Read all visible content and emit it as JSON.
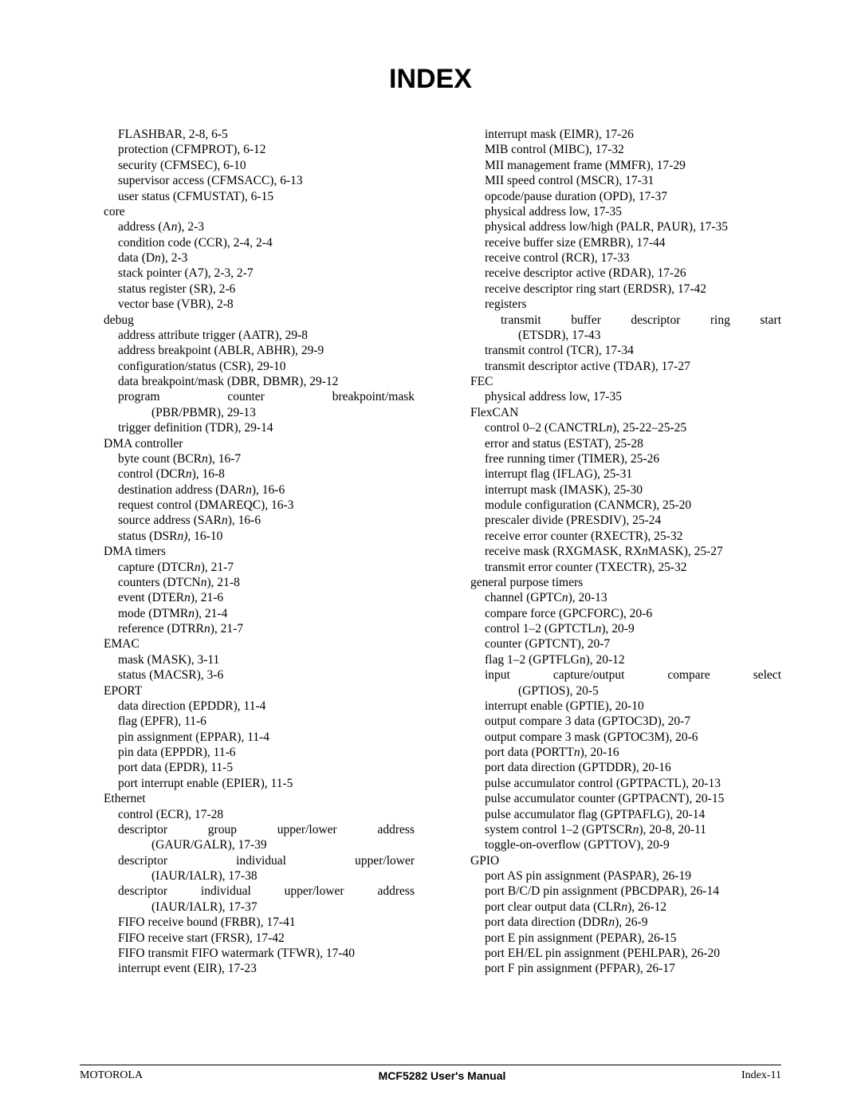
{
  "title": "INDEX",
  "footer": {
    "left": "MOTOROLA",
    "center": "MCF5282 User's Manual",
    "right": "Index-11"
  },
  "col1": [
    {
      "lvl": 1,
      "html": "FLASHBAR, 2-8, 6-5"
    },
    {
      "lvl": 1,
      "html": "protection (CFMPROT), 6-12"
    },
    {
      "lvl": 1,
      "html": "security (CFMSEC), 6-10"
    },
    {
      "lvl": 1,
      "html": "supervisor access (CFMSACC), 6-13"
    },
    {
      "lvl": 1,
      "html": "user status (CFMUSTAT), 6-15"
    },
    {
      "lvl": 0,
      "html": "core"
    },
    {
      "lvl": 1,
      "html": "address (A<i>n</i>), 2-3"
    },
    {
      "lvl": 1,
      "html": "condition code (CCR), 2-4, 2-4"
    },
    {
      "lvl": 1,
      "html": "data (D<i>n</i>), 2-3"
    },
    {
      "lvl": 1,
      "html": "stack pointer (A7), 2-3, 2-7"
    },
    {
      "lvl": 1,
      "html": "status register (SR), 2-6"
    },
    {
      "lvl": 1,
      "html": "vector base (VBR), 2-8"
    },
    {
      "lvl": 0,
      "html": "debug"
    },
    {
      "lvl": 1,
      "html": "address attribute trigger (AATR), 29-8"
    },
    {
      "lvl": 1,
      "html": "address breakpoint (ABLR, ABHR), 29-9"
    },
    {
      "lvl": 1,
      "html": "configuration/status (CSR), 29-10"
    },
    {
      "lvl": 1,
      "html": "data breakpoint/mask (DBR, DBMR), 29-12"
    },
    {
      "lvl": 1,
      "just": true,
      "html": "program counter breakpoint/mask"
    },
    {
      "lvl": 3,
      "html": "(PBR/PBMR), 29-13"
    },
    {
      "lvl": 1,
      "html": "trigger definition (TDR), 29-14"
    },
    {
      "lvl": 0,
      "html": "DMA controller"
    },
    {
      "lvl": 1,
      "html": "byte count (BCR<i>n</i>), 16-7"
    },
    {
      "lvl": 1,
      "html": "control (DCR<i>n</i>), 16-8"
    },
    {
      "lvl": 1,
      "html": "destination address (DAR<i>n</i>), 16-6"
    },
    {
      "lvl": 1,
      "html": "request control (DMAREQC), 16-3"
    },
    {
      "lvl": 1,
      "html": "source address (SAR<i>n</i>), 16-6"
    },
    {
      "lvl": 1,
      "html": "status (DSR<i>n)</i>, 16-10"
    },
    {
      "lvl": 0,
      "html": "DMA timers"
    },
    {
      "lvl": 1,
      "html": "capture (DTCR<i>n</i>), 21-7"
    },
    {
      "lvl": 1,
      "html": "counters (DTCN<i>n</i>), 21-8"
    },
    {
      "lvl": 1,
      "html": "event (DTER<i>n</i>), 21-6"
    },
    {
      "lvl": 1,
      "html": "mode (DTMR<i>n</i>), 21-4"
    },
    {
      "lvl": 1,
      "html": "reference (DTRR<i>n</i>), 21-7"
    },
    {
      "lvl": 0,
      "html": "EMAC"
    },
    {
      "lvl": 1,
      "html": "mask (MASK), 3-11"
    },
    {
      "lvl": 1,
      "html": "status (MACSR), 3-6"
    },
    {
      "lvl": 0,
      "html": "EPORT"
    },
    {
      "lvl": 1,
      "html": "data direction (EPDDR), 11-4"
    },
    {
      "lvl": 1,
      "html": "flag (EPFR), 11-6"
    },
    {
      "lvl": 1,
      "html": "pin assignment (EPPAR), 11-4"
    },
    {
      "lvl": 1,
      "html": "pin data (EPPDR), 11-6"
    },
    {
      "lvl": 1,
      "html": "port data (EPDR), 11-5"
    },
    {
      "lvl": 1,
      "html": "port interrupt enable (EPIER), 11-5"
    },
    {
      "lvl": 0,
      "html": "Ethernet"
    },
    {
      "lvl": 1,
      "html": "control (ECR), 17-28"
    },
    {
      "lvl": 1,
      "just": true,
      "html": "descriptor group upper/lower address"
    },
    {
      "lvl": 3,
      "html": "(GAUR/GALR), 17-39"
    },
    {
      "lvl": 1,
      "just": true,
      "html": "descriptor individual upper/lower"
    },
    {
      "lvl": 3,
      "html": "(IAUR/IALR), 17-38"
    },
    {
      "lvl": 1,
      "just": true,
      "html": "descriptor individual upper/lower address"
    },
    {
      "lvl": 3,
      "html": "(IAUR/IALR), 17-37"
    },
    {
      "lvl": 1,
      "html": "FIFO receive bound (FRBR), 17-41"
    },
    {
      "lvl": 1,
      "html": "FIFO receive start (FRSR), 17-42"
    },
    {
      "lvl": 1,
      "html": "FIFO transmit FIFO watermark (TFWR), 17-40"
    },
    {
      "lvl": 1,
      "html": "interrupt event (EIR), 17-23"
    }
  ],
  "col2": [
    {
      "lvl": 1,
      "html": "interrupt mask (EIMR), 17-26"
    },
    {
      "lvl": 1,
      "html": "MIB control (MIBC), 17-32"
    },
    {
      "lvl": 1,
      "html": "MII management frame (MMFR), 17-29"
    },
    {
      "lvl": 1,
      "html": "MII speed control (MSCR), 17-31"
    },
    {
      "lvl": 1,
      "html": "opcode/pause duration (OPD), 17-37"
    },
    {
      "lvl": 1,
      "html": "physical address low, 17-35"
    },
    {
      "lvl": 1,
      "html": "physical address low/high (PALR, PAUR), 17-35"
    },
    {
      "lvl": 1,
      "html": "receive buffer size (EMRBR), 17-44"
    },
    {
      "lvl": 1,
      "html": "receive control (RCR), 17-33"
    },
    {
      "lvl": 1,
      "html": "receive descriptor active (RDAR), 17-26"
    },
    {
      "lvl": 1,
      "html": "receive descriptor ring start (ERDSR), 17-42"
    },
    {
      "lvl": 1,
      "html": "registers"
    },
    {
      "lvl": 2,
      "just": true,
      "html": "transmit buffer descriptor ring start"
    },
    {
      "lvl": 3,
      "html": "(ETSDR), 17-43"
    },
    {
      "lvl": 1,
      "html": "transmit control (TCR), 17-34"
    },
    {
      "lvl": 1,
      "html": "transmit descriptor active (TDAR), 17-27"
    },
    {
      "lvl": 0,
      "html": "FEC"
    },
    {
      "lvl": 1,
      "html": "physical address low, 17-35"
    },
    {
      "lvl": 0,
      "html": "FlexCAN"
    },
    {
      "lvl": 1,
      "html": "control 0–2 (CANCTRL<i>n</i>), 25-22–25-25"
    },
    {
      "lvl": 1,
      "html": "error and status (ESTAT), 25-28"
    },
    {
      "lvl": 1,
      "html": "free running timer (TIMER), 25-26"
    },
    {
      "lvl": 1,
      "html": "interrupt flag (IFLAG), 25-31"
    },
    {
      "lvl": 1,
      "html": "interrupt mask (IMASK), 25-30"
    },
    {
      "lvl": 1,
      "html": "module configuration (CANMCR), 25-20"
    },
    {
      "lvl": 1,
      "html": "prescaler divide (PRESDIV), 25-24"
    },
    {
      "lvl": 1,
      "html": "receive error counter (RXECTR), 25-32"
    },
    {
      "lvl": 1,
      "html": "receive mask (RXGMASK, RX<i>n</i>MASK), 25-27"
    },
    {
      "lvl": 1,
      "html": "transmit error counter (TXECTR), 25-32"
    },
    {
      "lvl": 0,
      "html": "general purpose timers"
    },
    {
      "lvl": 1,
      "html": "channel (GPTC<i>n</i>), 20-13"
    },
    {
      "lvl": 1,
      "html": "compare force (GPCFORC), 20-6"
    },
    {
      "lvl": 1,
      "html": "control 1–2 (GPTCTL<i>n</i>), 20-9"
    },
    {
      "lvl": 1,
      "html": "counter (GPTCNT), 20-7"
    },
    {
      "lvl": 1,
      "html": "flag 1–2 (GPTFLGn), 20-12"
    },
    {
      "lvl": 1,
      "just": true,
      "html": "input capture/output compare select"
    },
    {
      "lvl": 3,
      "html": "(GPTIOS), 20-5"
    },
    {
      "lvl": 1,
      "html": "interrupt enable (GPTIE), 20-10"
    },
    {
      "lvl": 1,
      "html": "output compare 3 data (GPTOC3D), 20-7"
    },
    {
      "lvl": 1,
      "html": "output compare 3 mask (GPTOC3M), 20-6"
    },
    {
      "lvl": 1,
      "html": "port data (PORTT<i>n</i>), 20-16"
    },
    {
      "lvl": 1,
      "html": "port data direction (GPTDDR), 20-16"
    },
    {
      "lvl": 1,
      "html": "pulse accumulator control (GPTPACTL), 20-13"
    },
    {
      "lvl": 1,
      "html": "pulse accumulator counter (GPTPACNT), 20-15"
    },
    {
      "lvl": 1,
      "html": "pulse accumulator flag (GPTPAFLG), 20-14"
    },
    {
      "lvl": 1,
      "html": "system control 1–2 (GPTSCR<i>n</i>), 20-8, 20-11"
    },
    {
      "lvl": 1,
      "html": "toggle-on-overflow (GPTTOV), 20-9"
    },
    {
      "lvl": 0,
      "html": "GPIO"
    },
    {
      "lvl": 1,
      "html": "port AS pin assignment (PASPAR), 26-19"
    },
    {
      "lvl": 1,
      "html": "port B/C/D pin assignment (PBCDPAR), 26-14"
    },
    {
      "lvl": 1,
      "html": "port clear output data (CLR<i>n</i>), 26-12"
    },
    {
      "lvl": 1,
      "html": "port data direction (DDR<i>n</i>), 26-9"
    },
    {
      "lvl": 1,
      "html": "port E pin assignment (PEPAR), 26-15"
    },
    {
      "lvl": 1,
      "html": "port EH/EL pin assignment (PEHLPAR), 26-20"
    },
    {
      "lvl": 1,
      "html": "port F pin assignment (PFPAR), 26-17"
    }
  ]
}
